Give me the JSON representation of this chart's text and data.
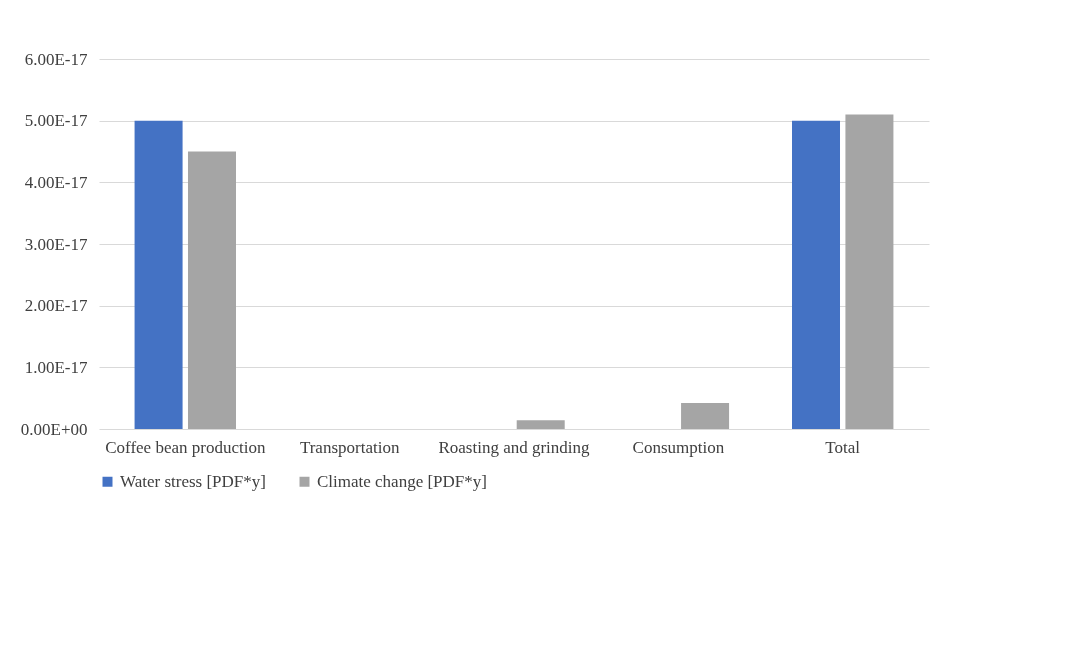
{
  "chart_data": {
    "type": "bar",
    "categories": [
      "Coffee bean production",
      "Transportation",
      "Roasting and grinding",
      "Consumption",
      "Total"
    ],
    "series": [
      {
        "name": "Water stress [PDF*y]",
        "color": "#4472c4",
        "values": [
          5e-17,
          0,
          0,
          0,
          5e-17
        ]
      },
      {
        "name": "Climate change [PDF*y]",
        "color": "#a5a5a5",
        "values": [
          4.5e-17,
          0,
          1.4e-18,
          4.2e-18,
          5.1e-17
        ]
      }
    ],
    "ylim": [
      0,
      6e-17
    ],
    "yticks": [
      {
        "value": 0,
        "label": "0.00E+00"
      },
      {
        "value": 1e-17,
        "label": "1.00E-17"
      },
      {
        "value": 2e-17,
        "label": "2.00E-17"
      },
      {
        "value": 3e-17,
        "label": "3.00E-17"
      },
      {
        "value": 4e-17,
        "label": "4.00E-17"
      },
      {
        "value": 5e-17,
        "label": "5.00E-17"
      },
      {
        "value": 6e-17,
        "label": "6.00E-17"
      }
    ],
    "grid": "y",
    "legend": "bottom"
  }
}
